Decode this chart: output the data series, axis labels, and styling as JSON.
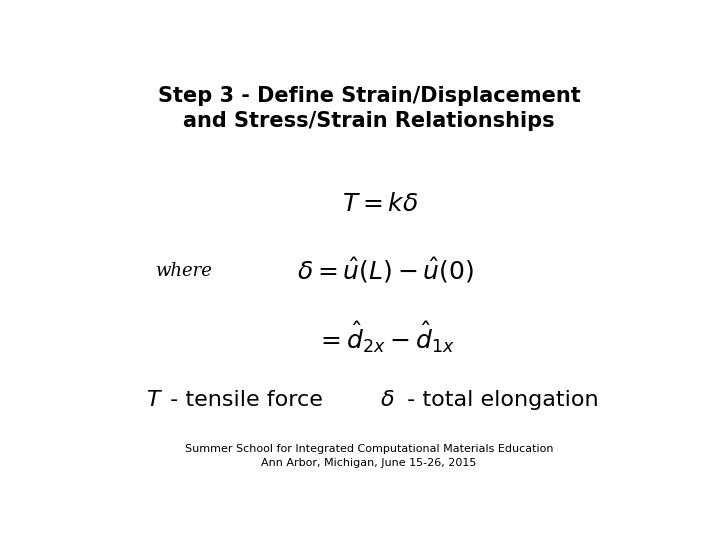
{
  "title_line1": "Step 3 - Define Strain/Displacement",
  "title_line2": "and Stress/Strain Relationships",
  "eq1": "$T = k\\delta$",
  "where_label": "where",
  "eq2": "$\\delta = \\hat{u}(L) - \\hat{u}(0)$",
  "eq3": "$= \\hat{d}_{2x} - \\hat{d}_{1x}$",
  "legend1": "$T$",
  "legend1b": " - tensile force",
  "legend2": "$\\delta$",
  "legend2b": " - total elongation",
  "footer1": "Summer School for Integrated Computational Materials Education",
  "footer2": "Ann Arbor, Michigan, June 15-26, 2015",
  "bg_color": "#ffffff",
  "text_color": "#000000",
  "title_fontsize": 15,
  "eq_fontsize": 18,
  "legend_fontsize": 16,
  "footer_fontsize": 8,
  "where_fontsize": 13
}
